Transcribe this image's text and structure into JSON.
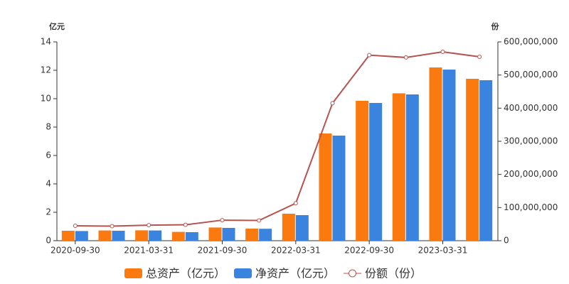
{
  "chart_data": {
    "type": "bar",
    "y_unit": "亿元",
    "y2_unit": "份",
    "categories": [
      "2020-09-30",
      null,
      "2021-03-31",
      null,
      "2021-09-30",
      null,
      "2022-03-31",
      null,
      "2022-09-30",
      null,
      "2023-03-31",
      null
    ],
    "series": [
      {
        "name": "总资产（亿元）",
        "type": "bar",
        "color": "#fa7a0f",
        "values": [
          0.7,
          0.72,
          0.73,
          0.62,
          0.93,
          0.85,
          1.9,
          7.55,
          9.85,
          10.38,
          12.2,
          11.4
        ]
      },
      {
        "name": "净资产（亿元）",
        "type": "bar",
        "color": "#3a84e0",
        "values": [
          0.68,
          0.7,
          0.72,
          0.6,
          0.9,
          0.84,
          1.8,
          7.4,
          9.7,
          10.3,
          12.05,
          11.3
        ]
      },
      {
        "name": "份额（份）",
        "type": "line",
        "axis": "y2",
        "color": "#b5534f",
        "values": [
          45000000,
          44000000,
          47000000,
          48000000,
          62000000,
          61000000,
          113000000,
          415000000,
          560000000,
          553000000,
          570000000,
          555000000
        ]
      }
    ],
    "ylim": [
      0,
      14
    ],
    "yticks": [
      0,
      2,
      4,
      6,
      8,
      10,
      12,
      14
    ],
    "y2lim": [
      0,
      600000000
    ],
    "y2ticks": [
      0,
      {
        "value": 100000000,
        "label": "100,000,000"
      },
      {
        "value": 200000000,
        "label": "200,000,000"
      },
      {
        "value": 300000000,
        "label": "300,000,000"
      },
      {
        "value": 400000000,
        "label": "400,000,000"
      },
      {
        "value": 500000000,
        "label": "500,000,000"
      },
      {
        "value": 600000000,
        "label": "600,000,000"
      }
    ],
    "grid": false
  }
}
